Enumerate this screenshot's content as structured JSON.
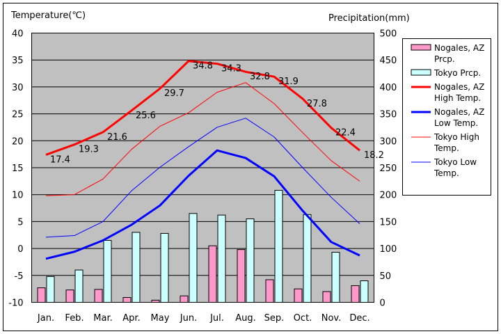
{
  "chart_data": {
    "type": "bar",
    "categories": [
      "Jan.",
      "Feb.",
      "Mar.",
      "Apr.",
      "May",
      "Jun.",
      "Jul.",
      "Aug.",
      "Sep.",
      "Oct.",
      "Nov.",
      "Dec."
    ],
    "y_left_label": "Temperature(℃)",
    "y_right_label": "Precipitation(mm)",
    "y_left_range": [
      -10,
      40
    ],
    "y_left_ticks": [
      "40",
      "35",
      "30",
      "25",
      "20",
      "15",
      "10",
      "5",
      "0",
      "-5",
      "-10"
    ],
    "y_right_range": [
      0,
      500
    ],
    "y_right_ticks": [
      "500",
      "450",
      "400",
      "350",
      "300",
      "250",
      "200",
      "150",
      "100",
      "50",
      "0"
    ],
    "grid": true,
    "legend_position": "right",
    "bar_series": [
      {
        "name": "Nogales, AZ Prcp.",
        "legend_lines": [
          "Nogales, AZ",
          "Prcp."
        ],
        "color": "#ff99cc",
        "axis": "right",
        "values": [
          27,
          23,
          24,
          9,
          4,
          12,
          105,
          98,
          42,
          25,
          20,
          31
        ]
      },
      {
        "name": "Tokyo Prcp.",
        "legend_lines": [
          "Tokyo Prcp."
        ],
        "color": "#ccffff",
        "axis": "right",
        "values": [
          48,
          60,
          115,
          130,
          128,
          165,
          162,
          155,
          208,
          163,
          93,
          40
        ]
      }
    ],
    "line_series": [
      {
        "name": "Nogales, AZ High Temp.",
        "legend_lines": [
          "Nogales, AZ",
          "High Temp."
        ],
        "color": "#ff0000",
        "width": 3,
        "axis": "left",
        "values": [
          17.4,
          19.3,
          21.6,
          25.6,
          29.7,
          34.8,
          34.3,
          32.8,
          31.9,
          27.8,
          22.4,
          18.2
        ],
        "labels": [
          "17.4",
          "19.3",
          "21.6",
          "25.6",
          "29.7",
          "34.8",
          "34.3",
          "32.8",
          "31.9",
          "27.8",
          "22.4",
          "18.2"
        ]
      },
      {
        "name": "Nogales, AZ Low Temp.",
        "legend_lines": [
          "Nogales, AZ",
          "Low Temp."
        ],
        "color": "#0000ff",
        "width": 3,
        "axis": "left",
        "values": [
          -1.9,
          -0.6,
          1.5,
          4.4,
          8.0,
          13.5,
          18.2,
          16.8,
          13.4,
          7.0,
          1.2,
          -1.3
        ]
      },
      {
        "name": "Tokyo High Temp.",
        "legend_lines": [
          "Tokyo High",
          "Temp."
        ],
        "color": "#ff0000",
        "width": 1,
        "axis": "left",
        "values": [
          9.8,
          10.0,
          12.9,
          18.4,
          22.7,
          25.2,
          29.0,
          30.8,
          26.9,
          21.5,
          16.3,
          12.5
        ]
      },
      {
        "name": "Tokyo Low Temp.",
        "legend_lines": [
          "Tokyo Low",
          "Temp."
        ],
        "color": "#0000ff",
        "width": 1,
        "axis": "left",
        "values": [
          2.1,
          2.4,
          5.0,
          10.7,
          15.1,
          18.9,
          22.5,
          24.2,
          20.7,
          15.0,
          9.5,
          4.6
        ]
      }
    ]
  }
}
